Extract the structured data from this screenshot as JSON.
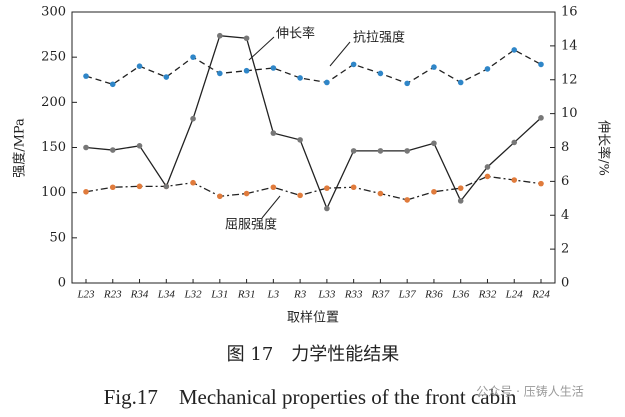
{
  "chart_data": {
    "type": "line",
    "categories": [
      "L23",
      "R23",
      "R34",
      "L34",
      "L32",
      "L31",
      "R31",
      "L3",
      "R3",
      "L33",
      "R33",
      "R37",
      "L37",
      "R36",
      "L36",
      "R32",
      "L24",
      "R24"
    ],
    "series": [
      {
        "name": "抗拉强度",
        "color": "#2f86c8",
        "line_color": "#222222",
        "dash": "6,4",
        "values": [
          229,
          220,
          240,
          228,
          250,
          232,
          235,
          238,
          227,
          222,
          242,
          232,
          221,
          239,
          222,
          237,
          258,
          242
        ]
      },
      {
        "name": "屈服强度",
        "color": "#e07b3c",
        "line_color": "#222222",
        "dash": "7,3,2,3",
        "values": [
          101,
          106,
          107,
          107,
          111,
          96,
          99,
          106,
          97,
          105,
          106,
          99,
          92,
          101,
          105,
          118,
          114,
          110
        ]
      },
      {
        "name": "伸长率",
        "color": "#777777",
        "line_color": "#222222",
        "axis": "y2",
        "values": [
          8.0,
          7.85,
          8.1,
          5.7,
          9.7,
          14.6,
          14.45,
          8.85,
          8.45,
          4.4,
          7.8,
          7.8,
          7.8,
          8.25,
          4.85,
          6.85,
          8.3,
          9.75
        ]
      }
    ],
    "ylim": [
      0,
      300
    ],
    "yticks": [
      0,
      50,
      100,
      150,
      200,
      250,
      300
    ],
    "y2lim": [
      0,
      16
    ],
    "y2ticks": [
      0,
      2,
      4,
      6,
      8,
      10,
      12,
      14,
      16
    ],
    "ylabel": "强度/MPa",
    "y2label": "伸长率/%",
    "xlabel": "取样位置",
    "caption_cn": "图 17　力学性能结果",
    "caption_en": "Fig.17　Mechanical properties of the front cabin",
    "watermark": "公众号 · 压铸人生活"
  }
}
